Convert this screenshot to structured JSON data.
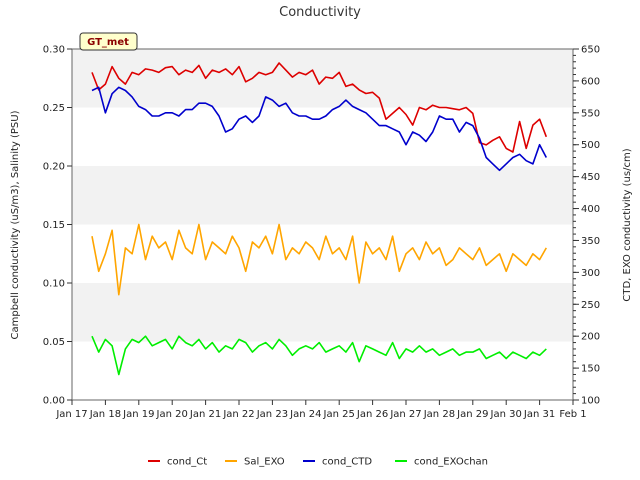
{
  "chart_data": {
    "type": "line",
    "title": "Conductivity",
    "badge": "GT_met",
    "ylabel_left": "Campbell conductivity (uS/m3), Salinity (PSU)",
    "ylabel_right": "CTD, EXO conductivity (us/cm)",
    "x_tick_labels": [
      "Jan 17",
      "Jan 18",
      "Jan 19",
      "Jan 20",
      "Jan 21",
      "Jan 22",
      "Jan 23",
      "Jan 24",
      "Jan 25",
      "Jan 26",
      "Jan 27",
      "Jan 28",
      "Jan 29",
      "Jan 30",
      "Jan 31",
      "Feb 1"
    ],
    "x_tick_days": [
      17,
      18,
      19,
      20,
      21,
      22,
      23,
      24,
      25,
      26,
      27,
      28,
      29,
      30,
      31,
      32
    ],
    "xlim": [
      17,
      32
    ],
    "ylim_left": [
      0,
      0.3
    ],
    "ylim_right": [
      100,
      650
    ],
    "yticks_left": [
      "0.00",
      "0.05",
      "0.10",
      "0.15",
      "0.20",
      "0.25",
      "0.30"
    ],
    "yticks_right": [
      "100",
      "150",
      "200",
      "250",
      "300",
      "350",
      "400",
      "450",
      "500",
      "550",
      "600",
      "650"
    ],
    "grid": "horizontal bands",
    "legend_position": "bottom",
    "series": [
      {
        "name": "cond_Ct",
        "axis": "left",
        "color": "#dd0000",
        "x": [
          17.6,
          17.8,
          18.0,
          18.2,
          18.4,
          18.6,
          18.8,
          19.0,
          19.2,
          19.4,
          19.6,
          19.8,
          20.0,
          20.2,
          20.4,
          20.6,
          20.8,
          21.0,
          21.2,
          21.4,
          21.6,
          21.8,
          22.0,
          22.2,
          22.4,
          22.6,
          22.8,
          23.0,
          23.2,
          23.4,
          23.6,
          23.8,
          24.0,
          24.2,
          24.4,
          24.6,
          24.8,
          25.0,
          25.2,
          25.4,
          25.6,
          25.8,
          26.0,
          26.2,
          26.4,
          26.6,
          26.8,
          27.0,
          27.2,
          27.4,
          27.6,
          27.8,
          28.0,
          28.2,
          28.4,
          28.6,
          28.8,
          29.0,
          29.2,
          29.4,
          29.6,
          29.8,
          30.0,
          30.2,
          30.4,
          30.6,
          30.8,
          31.0,
          31.2
        ],
        "y": [
          0.28,
          0.265,
          0.27,
          0.285,
          0.275,
          0.27,
          0.28,
          0.278,
          0.283,
          0.282,
          0.28,
          0.284,
          0.285,
          0.278,
          0.282,
          0.28,
          0.286,
          0.275,
          0.282,
          0.28,
          0.283,
          0.278,
          0.285,
          0.272,
          0.275,
          0.28,
          0.278,
          0.28,
          0.288,
          0.282,
          0.276,
          0.28,
          0.278,
          0.282,
          0.27,
          0.276,
          0.275,
          0.28,
          0.268,
          0.27,
          0.265,
          0.262,
          0.263,
          0.258,
          0.24,
          0.245,
          0.25,
          0.244,
          0.235,
          0.25,
          0.248,
          0.252,
          0.25,
          0.25,
          0.249,
          0.248,
          0.25,
          0.245,
          0.22,
          0.218,
          0.222,
          0.225,
          0.215,
          0.212,
          0.238,
          0.215,
          0.235,
          0.24,
          0.225
        ]
      },
      {
        "name": "Sal_EXO",
        "axis": "left",
        "color": "#ffa500",
        "x": [
          17.6,
          17.8,
          18.0,
          18.2,
          18.4,
          18.6,
          18.8,
          19.0,
          19.2,
          19.4,
          19.6,
          19.8,
          20.0,
          20.2,
          20.4,
          20.6,
          20.8,
          21.0,
          21.2,
          21.4,
          21.6,
          21.8,
          22.0,
          22.2,
          22.4,
          22.6,
          22.8,
          23.0,
          23.2,
          23.4,
          23.6,
          23.8,
          24.0,
          24.2,
          24.4,
          24.6,
          24.8,
          25.0,
          25.2,
          25.4,
          25.6,
          25.8,
          26.0,
          26.2,
          26.4,
          26.6,
          26.8,
          27.0,
          27.2,
          27.4,
          27.6,
          27.8,
          28.0,
          28.2,
          28.4,
          28.6,
          28.8,
          29.0,
          29.2,
          29.4,
          29.6,
          29.8,
          30.0,
          30.2,
          30.4,
          30.6,
          30.8,
          31.0,
          31.2
        ],
        "y": [
          0.14,
          0.11,
          0.125,
          0.145,
          0.09,
          0.13,
          0.125,
          0.15,
          0.12,
          0.14,
          0.13,
          0.135,
          0.12,
          0.145,
          0.13,
          0.125,
          0.15,
          0.12,
          0.135,
          0.13,
          0.125,
          0.14,
          0.13,
          0.11,
          0.135,
          0.13,
          0.14,
          0.125,
          0.15,
          0.12,
          0.13,
          0.125,
          0.135,
          0.13,
          0.12,
          0.14,
          0.125,
          0.13,
          0.12,
          0.14,
          0.1,
          0.135,
          0.125,
          0.13,
          0.12,
          0.14,
          0.11,
          0.125,
          0.13,
          0.12,
          0.135,
          0.125,
          0.13,
          0.115,
          0.12,
          0.13,
          0.125,
          0.12,
          0.13,
          0.115,
          0.12,
          0.125,
          0.11,
          0.125,
          0.12,
          0.115,
          0.125,
          0.12,
          0.13
        ]
      },
      {
        "name": "cond_CTD",
        "axis": "right",
        "color": "#0000cc",
        "x": [
          17.6,
          17.8,
          18.0,
          18.2,
          18.4,
          18.6,
          18.8,
          19.0,
          19.2,
          19.4,
          19.6,
          19.8,
          20.0,
          20.2,
          20.4,
          20.6,
          20.8,
          21.0,
          21.2,
          21.4,
          21.6,
          21.8,
          22.0,
          22.2,
          22.4,
          22.6,
          22.8,
          23.0,
          23.2,
          23.4,
          23.6,
          23.8,
          24.0,
          24.2,
          24.4,
          24.6,
          24.8,
          25.0,
          25.2,
          25.4,
          25.6,
          25.8,
          26.0,
          26.2,
          26.4,
          26.6,
          26.8,
          27.0,
          27.2,
          27.4,
          27.6,
          27.8,
          28.0,
          28.2,
          28.4,
          28.6,
          28.8,
          29.0,
          29.2,
          29.4,
          29.6,
          29.8,
          30.0,
          30.2,
          30.4,
          30.6,
          30.8,
          31.0,
          31.2
        ],
        "y": [
          585,
          590,
          550,
          580,
          590,
          585,
          575,
          560,
          555,
          545,
          545,
          550,
          550,
          545,
          555,
          555,
          565,
          565,
          560,
          545,
          520,
          525,
          540,
          545,
          535,
          545,
          575,
          570,
          560,
          565,
          550,
          545,
          545,
          540,
          540,
          545,
          555,
          560,
          570,
          560,
          555,
          550,
          540,
          530,
          530,
          525,
          520,
          500,
          520,
          515,
          505,
          520,
          545,
          540,
          540,
          520,
          535,
          530,
          510,
          480,
          470,
          460,
          470,
          480,
          485,
          475,
          470,
          500,
          480
        ]
      },
      {
        "name": "cond_EXOchan",
        "axis": "right",
        "color": "#00ee00",
        "x": [
          17.6,
          17.8,
          18.0,
          18.2,
          18.4,
          18.6,
          18.8,
          19.0,
          19.2,
          19.4,
          19.6,
          19.8,
          20.0,
          20.2,
          20.4,
          20.6,
          20.8,
          21.0,
          21.2,
          21.4,
          21.6,
          21.8,
          22.0,
          22.2,
          22.4,
          22.6,
          22.8,
          23.0,
          23.2,
          23.4,
          23.6,
          23.8,
          24.0,
          24.2,
          24.4,
          24.6,
          24.8,
          25.0,
          25.2,
          25.4,
          25.6,
          25.8,
          26.0,
          26.2,
          26.4,
          26.6,
          26.8,
          27.0,
          27.2,
          27.4,
          27.6,
          27.8,
          28.0,
          28.2,
          28.4,
          28.6,
          28.8,
          29.0,
          29.2,
          29.4,
          29.6,
          29.8,
          30.0,
          30.2,
          30.4,
          30.6,
          30.8,
          31.0,
          31.2
        ],
        "y": [
          200,
          175,
          195,
          185,
          140,
          180,
          195,
          190,
          200,
          185,
          190,
          195,
          180,
          200,
          190,
          185,
          195,
          180,
          190,
          175,
          185,
          180,
          195,
          190,
          175,
          185,
          190,
          180,
          195,
          185,
          170,
          180,
          185,
          180,
          190,
          175,
          180,
          185,
          175,
          190,
          160,
          185,
          180,
          175,
          170,
          190,
          165,
          180,
          175,
          185,
          175,
          180,
          170,
          175,
          180,
          170,
          175,
          175,
          180,
          165,
          170,
          175,
          165,
          175,
          170,
          165,
          175,
          170,
          180
        ]
      }
    ]
  }
}
